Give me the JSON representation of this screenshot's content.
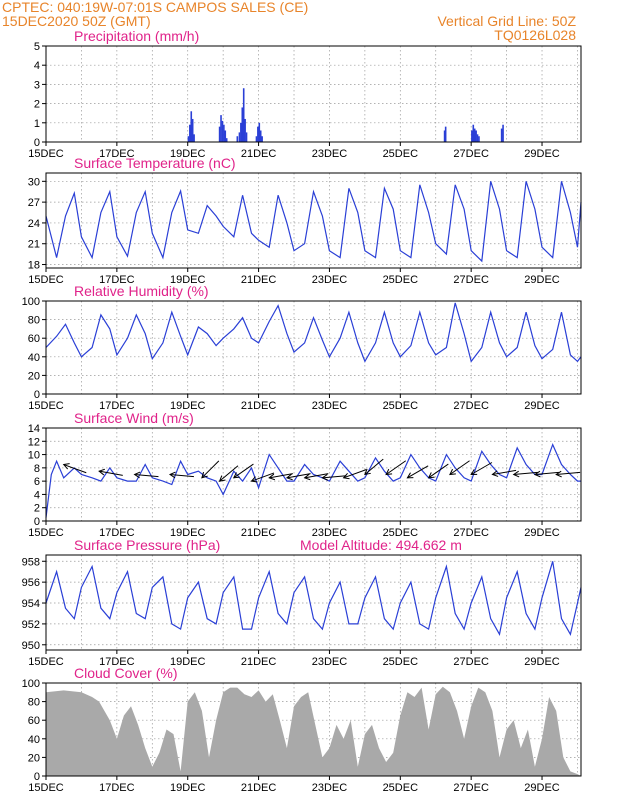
{
  "header": {
    "line1": "CPTEC:  040:19W-07:01S  CAMPOS SALES (CE)",
    "line2": "15DEC2020 50Z (GMT)",
    "grid_note": "Vertical Grid Line: 50Z",
    "code": "TQ0126L028"
  },
  "colors": {
    "header": "#e8842a",
    "title": "#e0238a",
    "series": "#2a3fd6",
    "cloud": "#a9a9a9",
    "grid": "#9a9a9a"
  },
  "x_axis": {
    "tick_labels": [
      "15DEC",
      "17DEC",
      "19DEC",
      "21DEC",
      "23DEC",
      "25DEC",
      "27DEC",
      "29DEC"
    ],
    "tick_days": [
      0,
      2,
      4,
      6,
      8,
      10,
      12,
      14
    ],
    "range_days": [
      0,
      15.1
    ]
  },
  "chart_data": [
    {
      "type": "bar",
      "title": "Precipitation (mm/h)",
      "ylim": [
        0,
        5
      ],
      "yticks": [
        "0",
        "1",
        "2",
        "3",
        "4",
        "5"
      ],
      "x_units": "days after 15DEC 00Z",
      "series": [
        {
          "x": [
            4.02,
            4.06,
            4.1,
            4.14,
            4.18,
            4.9,
            4.94,
            4.98,
            5.02,
            5.06,
            5.1,
            5.4,
            5.46,
            5.5,
            5.54,
            5.58,
            5.62,
            5.66,
            5.94,
            5.98,
            6.02,
            6.06,
            6.1,
            11.25,
            11.28,
            12.02,
            12.06,
            12.1,
            12.14,
            12.18,
            12.22,
            12.86,
            12.9
          ],
          "values": [
            0.3,
            0.9,
            1.6,
            1.2,
            0.4,
            0.8,
            1.4,
            1.1,
            0.9,
            0.6,
            0.2,
            0.3,
            0.5,
            1.0,
            1.8,
            2.8,
            1.2,
            0.5,
            0.3,
            0.8,
            1.0,
            0.6,
            0.3,
            0.6,
            0.8,
            0.6,
            0.9,
            0.7,
            0.6,
            0.4,
            0.3,
            0.7,
            0.9
          ]
        }
      ]
    },
    {
      "type": "line",
      "title": "Surface Temperature (nC)",
      "ylim": [
        17.5,
        31.2
      ],
      "yticks": [
        "18",
        "21",
        "24",
        "27",
        "30"
      ],
      "series": [
        {
          "x": [
            0,
            0.3,
            0.55,
            0.8,
            1.0,
            1.3,
            1.55,
            1.8,
            2.0,
            2.3,
            2.55,
            2.8,
            3.0,
            3.3,
            3.55,
            3.8,
            4.0,
            4.3,
            4.55,
            4.8,
            5.0,
            5.3,
            5.55,
            5.8,
            6.0,
            6.3,
            6.55,
            6.8,
            7.0,
            7.3,
            7.55,
            7.8,
            8.0,
            8.3,
            8.55,
            8.8,
            9.0,
            9.3,
            9.55,
            9.8,
            10.0,
            10.3,
            10.55,
            10.8,
            11.0,
            11.3,
            11.55,
            11.8,
            12.0,
            12.3,
            12.55,
            12.8,
            13.0,
            13.3,
            13.55,
            13.8,
            14.0,
            14.3,
            14.55,
            14.8,
            15.0,
            15.1
          ],
          "values": [
            25.0,
            19.0,
            25.0,
            28.3,
            22.0,
            19.0,
            25.5,
            28.5,
            22.0,
            19.2,
            25.5,
            28.5,
            22.5,
            19.0,
            25.5,
            28.6,
            23.0,
            22.5,
            26.5,
            25.0,
            23.5,
            22.0,
            28.0,
            22.5,
            21.5,
            20.5,
            28.0,
            24.0,
            20.0,
            21.0,
            28.5,
            25.0,
            20.0,
            19.0,
            29.0,
            25.5,
            20.0,
            19.0,
            29.0,
            26.0,
            20.0,
            19.0,
            29.5,
            25.5,
            21.0,
            19.5,
            29.5,
            26.0,
            20.0,
            18.5,
            30.0,
            26.0,
            20.0,
            19.0,
            30.0,
            26.0,
            20.5,
            19.0,
            30.0,
            25.5,
            20.5,
            27.0
          ]
        }
      ]
    },
    {
      "type": "line",
      "title": "Relative Humidity (%)",
      "ylim": [
        0,
        100
      ],
      "yticks": [
        "0",
        "20",
        "40",
        "60",
        "80",
        "100"
      ],
      "series": [
        {
          "x": [
            0,
            0.3,
            0.55,
            0.8,
            1.0,
            1.3,
            1.55,
            1.8,
            2.0,
            2.3,
            2.55,
            2.8,
            3.0,
            3.3,
            3.55,
            3.8,
            4.0,
            4.3,
            4.55,
            4.8,
            5.0,
            5.3,
            5.55,
            5.8,
            6.0,
            6.3,
            6.55,
            6.8,
            7.0,
            7.3,
            7.55,
            7.8,
            8.0,
            8.3,
            8.55,
            8.8,
            9.0,
            9.3,
            9.55,
            9.8,
            10.0,
            10.3,
            10.55,
            10.8,
            11.0,
            11.3,
            11.55,
            11.8,
            12.0,
            12.3,
            12.55,
            12.8,
            13.0,
            13.3,
            13.55,
            13.8,
            14.0,
            14.3,
            14.55,
            14.8,
            15.0,
            15.1
          ],
          "values": [
            50,
            62,
            75,
            55,
            40,
            50,
            85,
            70,
            42,
            60,
            85,
            65,
            38,
            55,
            88,
            62,
            42,
            72,
            65,
            52,
            60,
            70,
            82,
            60,
            55,
            78,
            95,
            65,
            45,
            55,
            82,
            58,
            40,
            60,
            88,
            55,
            35,
            55,
            88,
            55,
            40,
            52,
            88,
            55,
            42,
            50,
            98,
            65,
            35,
            50,
            88,
            55,
            40,
            50,
            88,
            52,
            38,
            48,
            88,
            42,
            35,
            40
          ]
        }
      ]
    },
    {
      "type": "line",
      "title": "Surface Wind (m/s)",
      "ylim": [
        0,
        14
      ],
      "yticks": [
        "0",
        "2",
        "4",
        "6",
        "8",
        "10",
        "12",
        "14"
      ],
      "series": [
        {
          "x": [
            0,
            0.15,
            0.3,
            0.5,
            0.8,
            1.0,
            1.3,
            1.55,
            1.8,
            2.0,
            2.3,
            2.55,
            2.8,
            3.0,
            3.3,
            3.55,
            3.8,
            4.0,
            4.3,
            4.55,
            4.8,
            5.0,
            5.3,
            5.55,
            5.8,
            6.0,
            6.3,
            6.55,
            6.8,
            7.0,
            7.3,
            7.55,
            7.8,
            8.0,
            8.3,
            8.55,
            8.8,
            9.0,
            9.3,
            9.55,
            9.8,
            10.0,
            10.3,
            10.55,
            10.8,
            11.0,
            11.3,
            11.55,
            11.8,
            12.0,
            12.3,
            12.55,
            12.8,
            13.0,
            13.3,
            13.55,
            13.8,
            14.0,
            14.3,
            14.55,
            14.8,
            15.0,
            15.1
          ],
          "values": [
            0.5,
            7.0,
            9.0,
            6.5,
            8.0,
            7.0,
            6.5,
            6.0,
            8.0,
            6.5,
            6.0,
            6.0,
            8.5,
            6.5,
            6.0,
            5.5,
            9.0,
            7.0,
            7.5,
            6.5,
            6.0,
            4.0,
            7.5,
            6.0,
            8.0,
            5.0,
            10.0,
            8.0,
            6.0,
            6.0,
            8.5,
            7.0,
            6.5,
            6.0,
            9.0,
            7.5,
            6.0,
            6.5,
            9.5,
            7.5,
            6.0,
            6.5,
            10.0,
            8.0,
            6.5,
            6.0,
            10.0,
            8.0,
            6.5,
            6.0,
            10.5,
            8.5,
            7.0,
            6.5,
            11.0,
            8.5,
            7.0,
            7.0,
            11.5,
            8.5,
            7.0,
            6.0,
            6.0
          ]
        }
      ],
      "arrows": {
        "x": [
          0.5,
          1.5,
          2.5,
          3.5,
          4.4,
          4.9,
          5.3,
          5.8,
          6.3,
          6.8,
          7.3,
          7.8,
          8.4,
          9.0,
          9.6,
          10.2,
          10.8,
          11.4,
          12.0,
          12.6,
          13.2,
          13.8,
          14.4
        ],
        "speed": [
          8.5,
          7.5,
          7.0,
          7.0,
          6.5,
          6.0,
          6.5,
          6.0,
          6.5,
          6.5,
          6.5,
          6.5,
          6.5,
          7.0,
          7.0,
          6.5,
          6.5,
          7.0,
          7.0,
          7.0,
          7.0,
          7.0,
          7.0
        ],
        "angle_deg": [
          20,
          10,
          5,
          5,
          -45,
          -40,
          -35,
          -20,
          -10,
          -10,
          -10,
          -5,
          -20,
          -40,
          -35,
          -30,
          -35,
          -35,
          -30,
          -10,
          -5,
          -5,
          -5
        ]
      }
    },
    {
      "type": "line",
      "title": "Surface Pressure (hPa)",
      "annotation": "Model Altitude: 494.662 m",
      "ylim": [
        949.5,
        958.6
      ],
      "yticks": [
        "950",
        "952",
        "954",
        "956",
        "958"
      ],
      "series": [
        {
          "x": [
            0,
            0.3,
            0.55,
            0.8,
            1.0,
            1.3,
            1.55,
            1.8,
            2.0,
            2.3,
            2.55,
            2.8,
            3.0,
            3.3,
            3.55,
            3.8,
            4.0,
            4.3,
            4.55,
            4.8,
            5.0,
            5.3,
            5.55,
            5.8,
            6.0,
            6.3,
            6.55,
            6.8,
            7.0,
            7.3,
            7.55,
            7.8,
            8.0,
            8.3,
            8.55,
            8.8,
            9.0,
            9.3,
            9.55,
            9.8,
            10.0,
            10.3,
            10.55,
            10.8,
            11.0,
            11.3,
            11.55,
            11.8,
            12.0,
            12.3,
            12.55,
            12.8,
            13.0,
            13.3,
            13.55,
            13.8,
            14.0,
            14.3,
            14.55,
            14.8,
            15.0,
            15.1
          ],
          "values": [
            954.0,
            957.0,
            953.5,
            952.5,
            955.5,
            957.5,
            953.5,
            952.5,
            955.0,
            957.0,
            953.0,
            952.5,
            955.5,
            956.5,
            952.0,
            951.5,
            954.5,
            956.0,
            952.5,
            952.0,
            955.0,
            956.5,
            951.5,
            951.5,
            954.5,
            957.0,
            953.0,
            952.0,
            955.0,
            956.5,
            952.5,
            951.5,
            954.0,
            956.0,
            952.0,
            952.0,
            954.5,
            956.5,
            952.5,
            951.5,
            954.0,
            956.0,
            952.0,
            951.5,
            954.5,
            957.5,
            953.0,
            951.5,
            954.0,
            956.5,
            952.5,
            951.0,
            954.5,
            957.0,
            953.0,
            951.5,
            954.5,
            958.0,
            952.5,
            951.0,
            954.0,
            955.5
          ]
        }
      ]
    },
    {
      "type": "area",
      "title": "Cloud Cover (%)",
      "ylim": [
        0,
        100
      ],
      "yticks": [
        "0",
        "20",
        "40",
        "60",
        "80",
        "100"
      ],
      "series": [
        {
          "x": [
            0,
            0.5,
            1.0,
            1.3,
            1.5,
            1.8,
            2.0,
            2.2,
            2.4,
            2.6,
            2.8,
            3.0,
            3.2,
            3.4,
            3.6,
            3.8,
            4.0,
            4.2,
            4.4,
            4.6,
            4.8,
            5.0,
            5.2,
            5.4,
            5.6,
            5.8,
            6.0,
            6.2,
            6.4,
            6.6,
            6.8,
            7.0,
            7.2,
            7.4,
            7.6,
            7.8,
            8.0,
            8.2,
            8.4,
            8.6,
            8.8,
            9.0,
            9.2,
            9.4,
            9.6,
            9.8,
            10.0,
            10.2,
            10.4,
            10.6,
            10.8,
            11.0,
            11.2,
            11.4,
            11.6,
            11.8,
            12.0,
            12.2,
            12.4,
            12.6,
            12.8,
            13.0,
            13.2,
            13.4,
            13.6,
            13.8,
            14.0,
            14.2,
            14.4,
            14.6,
            14.8,
            15.0,
            15.1
          ],
          "values": [
            90,
            92,
            90,
            85,
            80,
            60,
            40,
            65,
            75,
            55,
            30,
            10,
            25,
            50,
            45,
            5,
            80,
            90,
            70,
            20,
            60,
            90,
            95,
            95,
            88,
            85,
            92,
            80,
            88,
            60,
            30,
            75,
            85,
            90,
            55,
            20,
            30,
            55,
            40,
            60,
            10,
            45,
            55,
            30,
            15,
            25,
            65,
            90,
            85,
            95,
            50,
            88,
            96,
            90,
            70,
            40,
            75,
            95,
            90,
            70,
            20,
            50,
            60,
            30,
            50,
            10,
            40,
            85,
            70,
            20,
            5,
            2,
            0
          ]
        }
      ]
    }
  ]
}
